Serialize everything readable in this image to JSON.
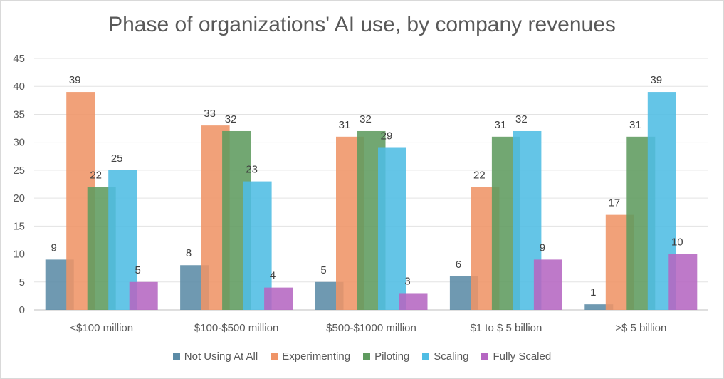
{
  "chart_data": {
    "type": "bar",
    "title": "Phase of organizations' AI use, by company revenues",
    "categories": [
      "<$100 million",
      "$100-$500 million",
      "$500-$1000 million",
      "$1 to $ 5 billion",
      ">$ 5 billion"
    ],
    "series": [
      {
        "name": "Not Using At All",
        "color": "#5b8ba6",
        "values": [
          9,
          8,
          5,
          6,
          1
        ]
      },
      {
        "name": "Experimenting",
        "color": "#ef9467",
        "values": [
          39,
          33,
          31,
          22,
          17
        ]
      },
      {
        "name": "Piloting",
        "color": "#5f9b5f",
        "values": [
          22,
          32,
          32,
          31,
          31
        ]
      },
      {
        "name": "Scaling",
        "color": "#4fbde4",
        "values": [
          25,
          23,
          29,
          32,
          39
        ]
      },
      {
        "name": "Fully Scaled",
        "color": "#b566c2",
        "values": [
          5,
          4,
          3,
          9,
          10
        ]
      }
    ],
    "yticks": [
      "0",
      "5",
      "10",
      "15",
      "20",
      "25",
      "30",
      "35",
      "40",
      "45"
    ],
    "ylim": [
      0,
      45
    ],
    "grid": true,
    "legend_position": "bottom"
  }
}
